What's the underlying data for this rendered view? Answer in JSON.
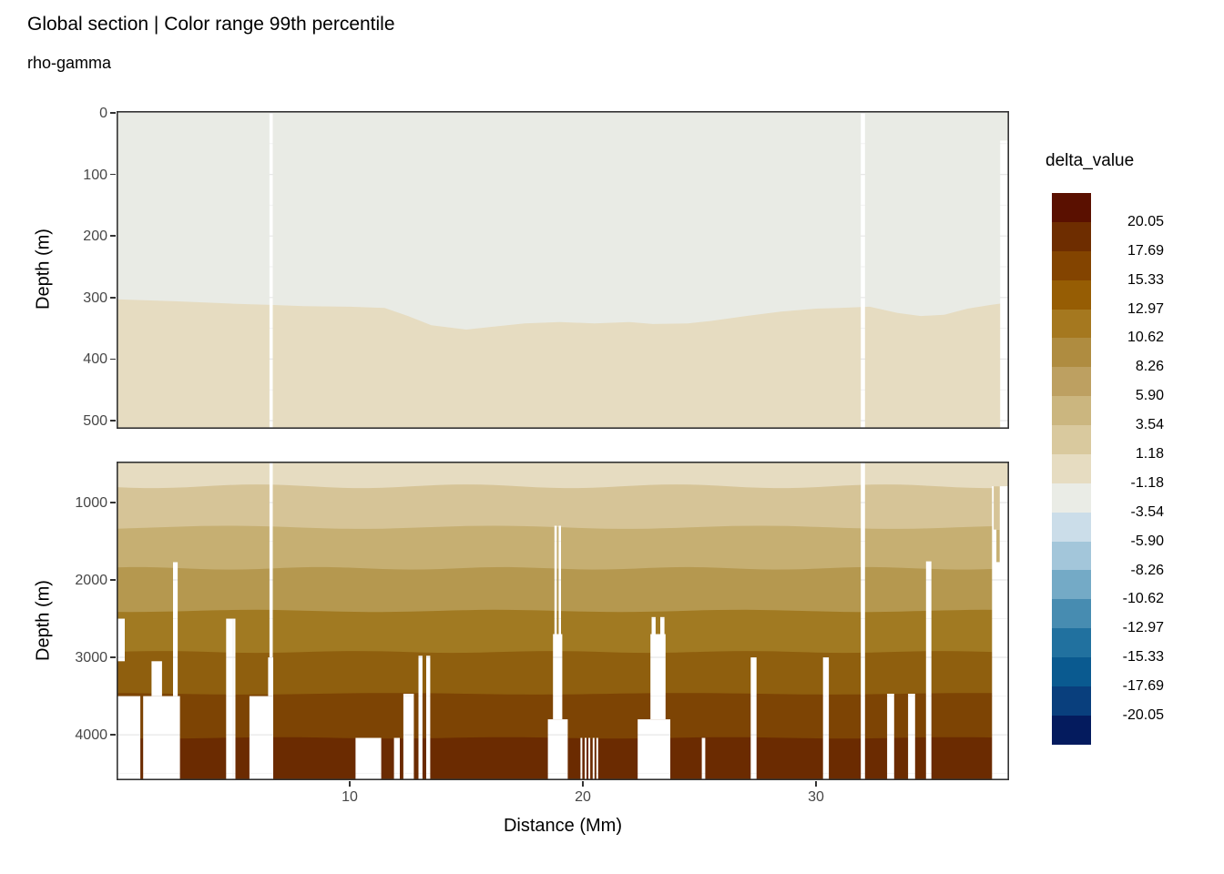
{
  "title": "Global section | Color range 99th percentile",
  "subtitle": "rho-gamma",
  "axes": {
    "x_label": "Distance (Mm)",
    "y_label": "Depth (m)",
    "x_tick_values": [
      10,
      20,
      30
    ],
    "upper_y_tick_values": [
      0,
      100,
      200,
      300,
      400,
      500
    ],
    "lower_y_tick_values": [
      1000,
      2000,
      3000,
      4000
    ]
  },
  "legend": {
    "title": "delta_value",
    "labels": [
      "20.05",
      "17.69",
      "15.33",
      "12.97",
      "10.62",
      "8.26",
      "5.90",
      "3.54",
      "1.18",
      "-1.18",
      "-3.54",
      "-5.90",
      "-8.26",
      "-10.62",
      "-12.97",
      "-15.33",
      "-17.69",
      "-20.05"
    ],
    "colors": [
      "#5a1000",
      "#6e2d00",
      "#834400",
      "#965d04",
      "#a5781f",
      "#af8c40",
      "#bda061",
      "#cbb67f",
      "#d9c99e",
      "#e6dcc1",
      "#eaece6",
      "#cbdde9",
      "#a3c6da",
      "#74aac6",
      "#478cb1",
      "#21719f",
      "#0a5a90",
      "#093f7d",
      "#041b5e"
    ]
  },
  "chart_data": {
    "type": "heatmap",
    "title": "Global section | Color range 99th percentile",
    "subtitle": "rho-gamma",
    "xlabel": "Distance (Mm)",
    "ylabel": "Depth (m)",
    "variable": "delta_value",
    "x_range_mm": [
      0,
      38.3
    ],
    "x_tick_values": [
      10,
      20,
      30
    ],
    "levels": [
      -20.05,
      -17.69,
      -15.33,
      -12.97,
      -10.62,
      -8.26,
      -5.9,
      -3.54,
      -1.18,
      1.18,
      3.54,
      5.9,
      8.26,
      10.62,
      12.97,
      15.33,
      17.69,
      20.05
    ],
    "palette_top_to_bottom": [
      "#5a1000",
      "#6e2d00",
      "#834400",
      "#965d04",
      "#a5781f",
      "#af8c40",
      "#bda061",
      "#cbb67f",
      "#d9c99e",
      "#e6dcc1",
      "#eaece6",
      "#cbdde9",
      "#a3c6da",
      "#74aac6",
      "#478cb1",
      "#21719f",
      "#0a5a90",
      "#093f7d",
      "#041b5e"
    ],
    "grid": "major and minor, light gray, visible in data gaps",
    "legend_position": "right",
    "panels": [
      {
        "id": "upper",
        "depth_range_m": [
          0,
          513
        ],
        "y_tick_values": [
          0,
          100,
          200,
          300,
          400,
          500
        ],
        "upper_region_value_band": "-3.54 to -1.18",
        "lower_region_value_band": "1.18 to 3.54",
        "upper_region_color": "#e9ebe5",
        "lower_region_color": "#e6dcc1",
        "interface_profile": {
          "mm": [
            0,
            2.5,
            5,
            6.6,
            8,
            10,
            11.5,
            12.5,
            13.5,
            15,
            16,
            17.5,
            19,
            20.5,
            22,
            23,
            24.5,
            25.5,
            27,
            28.5,
            30,
            31,
            32.3,
            33.5,
            34.5,
            35.5,
            36.5,
            37.5,
            38.3
          ],
          "depth_m": [
            303,
            306,
            310,
            312,
            314,
            315,
            317,
            330,
            345,
            352,
            348,
            342,
            340,
            342,
            340,
            343,
            342,
            338,
            330,
            323,
            318,
            317,
            315,
            325,
            330,
            328,
            318,
            312,
            308
          ]
        },
        "gaps_mm_depth": [
          [
            6.56,
            6.7,
            0,
            513
          ],
          [
            31.92,
            32.1,
            0,
            513
          ],
          [
            37.9,
            38.3,
            45,
            513
          ]
        ]
      },
      {
        "id": "lower",
        "depth_range_m": [
          471,
          4588
        ],
        "y_tick_values": [
          1000,
          2000,
          3000,
          4000
        ],
        "band_boundaries_m": [
          790,
          1320,
          1850,
          2400,
          2930,
          3470,
          4040
        ],
        "band_value_ranges": [
          "1.18-3.54",
          "3.54-5.90",
          "5.90-8.26",
          "8.26-10.62",
          "10.62-12.97",
          "12.97-15.33",
          "15.33-17.69",
          "17.69-20.05"
        ],
        "band_colors": [
          "#e6dcc1",
          "#d6c497",
          "#c6af72",
          "#b5984f",
          "#a17a22",
          "#8f5f0e",
          "#7d4404",
          "#6b2b01"
        ],
        "gaps_mm_depth": [
          [
            0,
            0.35,
            2500,
            3050
          ],
          [
            0,
            1.02,
            3500,
            4588
          ],
          [
            1.14,
            2.72,
            3500,
            4588
          ],
          [
            1.5,
            1.95,
            3050,
            3500
          ],
          [
            2.42,
            2.62,
            1770,
            3500
          ],
          [
            4.7,
            5.1,
            2500,
            4588
          ],
          [
            5.7,
            6.72,
            3500,
            4588
          ],
          [
            6.5,
            6.72,
            3000,
            3500
          ],
          [
            6.56,
            6.7,
            471,
            3000
          ],
          [
            10.25,
            11.35,
            4040,
            4588
          ],
          [
            11.9,
            12.15,
            4040,
            4588
          ],
          [
            12.3,
            12.75,
            3470,
            4588
          ],
          [
            12.95,
            13.12,
            2980,
            4588
          ],
          [
            13.28,
            13.45,
            2980,
            4588
          ],
          [
            18.78,
            18.88,
            1300,
            2700
          ],
          [
            18.96,
            19.06,
            1300,
            2700
          ],
          [
            18.72,
            19.12,
            2700,
            3800
          ],
          [
            18.5,
            19.35,
            3800,
            4588
          ],
          [
            19.9,
            19.98,
            4040,
            4588
          ],
          [
            20.08,
            20.16,
            4040,
            4588
          ],
          [
            20.24,
            20.32,
            4040,
            4588
          ],
          [
            20.42,
            20.5,
            4040,
            4588
          ],
          [
            20.58,
            20.66,
            4040,
            4588
          ],
          [
            22.35,
            23.75,
            3800,
            4588
          ],
          [
            22.9,
            23.55,
            2700,
            3800
          ],
          [
            22.95,
            23.12,
            2480,
            2700
          ],
          [
            23.32,
            23.5,
            2480,
            2700
          ],
          [
            25.1,
            25.25,
            4040,
            4588
          ],
          [
            27.2,
            27.45,
            3000,
            4588
          ],
          [
            30.3,
            30.55,
            3000,
            4588
          ],
          [
            31.92,
            32.1,
            471,
            4588
          ],
          [
            33.05,
            33.35,
            3470,
            4588
          ],
          [
            33.95,
            34.25,
            3470,
            4588
          ],
          [
            34.72,
            34.95,
            1760,
            4588
          ],
          [
            37.55,
            38.3,
            790,
            4588
          ]
        ],
        "patches": [
          {
            "mm": [
              37.62,
              37.88
            ],
            "depth_m": [
              790,
              1350
            ],
            "color": "#d6c497"
          },
          {
            "mm": [
              37.74,
              37.88
            ],
            "depth_m": [
              1350,
              1770
            ],
            "color": "#c6af72"
          }
        ]
      }
    ]
  }
}
